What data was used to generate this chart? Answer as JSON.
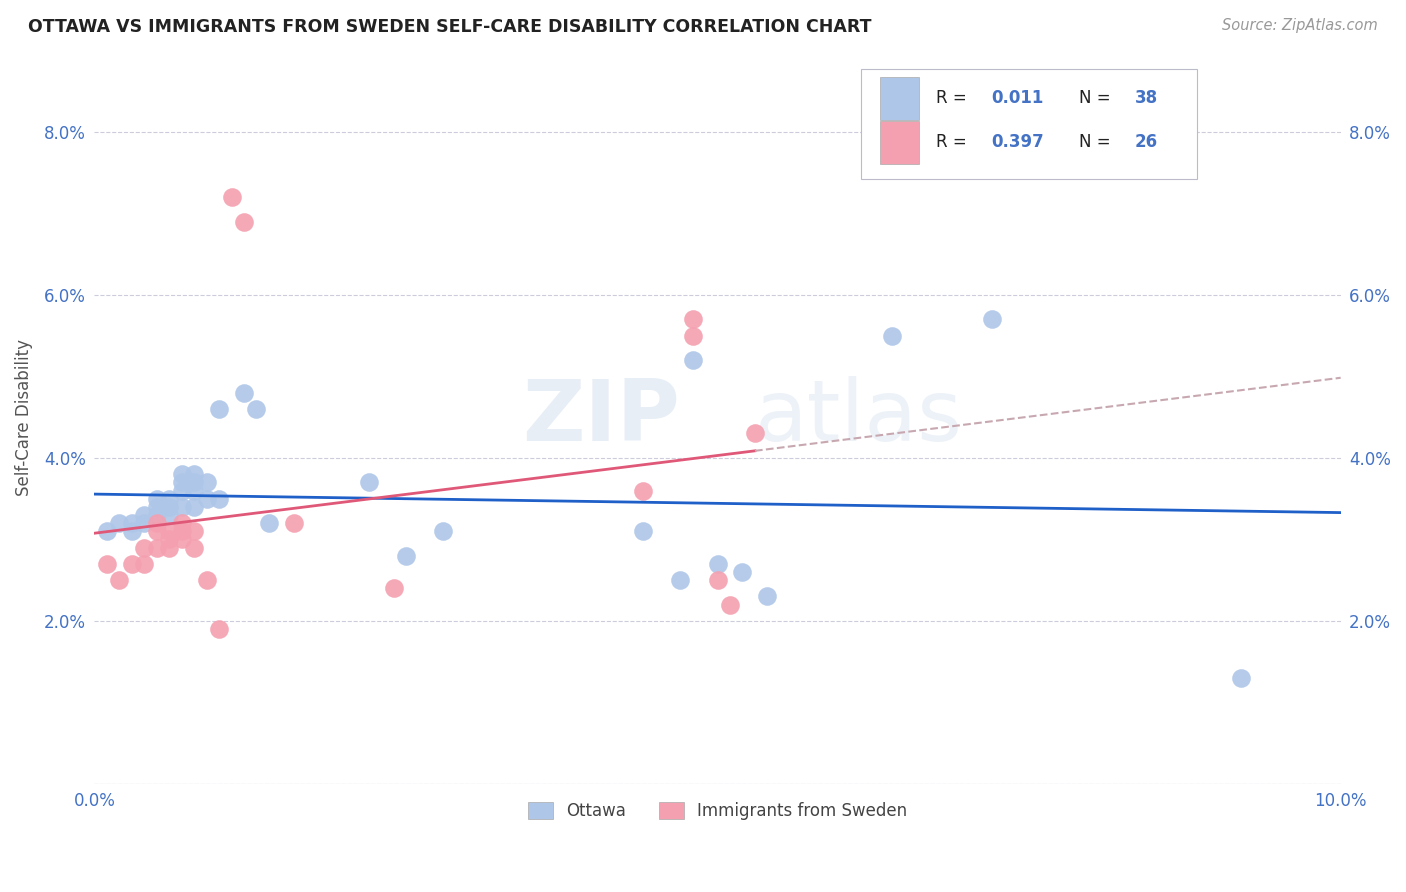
{
  "title": "OTTAWA VS IMMIGRANTS FROM SWEDEN SELF-CARE DISABILITY CORRELATION CHART",
  "source": "Source: ZipAtlas.com",
  "ylabel": "Self-Care Disability",
  "xlim": [
    0.0,
    0.1
  ],
  "ylim": [
    0.0,
    0.09
  ],
  "yticks": [
    0.0,
    0.02,
    0.04,
    0.06,
    0.08
  ],
  "ytick_labels": [
    "",
    "2.0%",
    "4.0%",
    "6.0%",
    "8.0%"
  ],
  "xticks": [
    0.0,
    0.02,
    0.04,
    0.06,
    0.08,
    0.1
  ],
  "xtick_labels": [
    "0.0%",
    "",
    "",
    "",
    "",
    "10.0%"
  ],
  "ottawa_color": "#aec6e8",
  "sweden_color": "#f4a0b0",
  "trendline1_color": "#1f5fc8",
  "trendline2_color": "#e05878",
  "trendline2_extend_color": "#c8a8b0",
  "watermark": "ZIPatlas",
  "legend_color": "#4472c4",
  "ottawa_points": [
    [
      0.001,
      0.031
    ],
    [
      0.002,
      0.032
    ],
    [
      0.003,
      0.032
    ],
    [
      0.003,
      0.031
    ],
    [
      0.004,
      0.033
    ],
    [
      0.004,
      0.032
    ],
    [
      0.005,
      0.035
    ],
    [
      0.005,
      0.034
    ],
    [
      0.005,
      0.033
    ],
    [
      0.006,
      0.035
    ],
    [
      0.006,
      0.034
    ],
    [
      0.006,
      0.033
    ],
    [
      0.007,
      0.038
    ],
    [
      0.007,
      0.037
    ],
    [
      0.007,
      0.036
    ],
    [
      0.007,
      0.034
    ],
    [
      0.008,
      0.038
    ],
    [
      0.008,
      0.037
    ],
    [
      0.008,
      0.036
    ],
    [
      0.008,
      0.034
    ],
    [
      0.009,
      0.037
    ],
    [
      0.009,
      0.035
    ],
    [
      0.01,
      0.046
    ],
    [
      0.01,
      0.035
    ],
    [
      0.012,
      0.048
    ],
    [
      0.013,
      0.046
    ],
    [
      0.014,
      0.032
    ],
    [
      0.022,
      0.037
    ],
    [
      0.025,
      0.028
    ],
    [
      0.028,
      0.031
    ],
    [
      0.044,
      0.031
    ],
    [
      0.047,
      0.025
    ],
    [
      0.048,
      0.052
    ],
    [
      0.05,
      0.027
    ],
    [
      0.052,
      0.026
    ],
    [
      0.054,
      0.023
    ],
    [
      0.064,
      0.055
    ],
    [
      0.072,
      0.057
    ],
    [
      0.092,
      0.013
    ]
  ],
  "sweden_points": [
    [
      0.001,
      0.027
    ],
    [
      0.002,
      0.025
    ],
    [
      0.003,
      0.027
    ],
    [
      0.004,
      0.027
    ],
    [
      0.004,
      0.029
    ],
    [
      0.005,
      0.029
    ],
    [
      0.005,
      0.032
    ],
    [
      0.005,
      0.031
    ],
    [
      0.006,
      0.031
    ],
    [
      0.006,
      0.03
    ],
    [
      0.006,
      0.029
    ],
    [
      0.007,
      0.032
    ],
    [
      0.007,
      0.031
    ],
    [
      0.007,
      0.03
    ],
    [
      0.008,
      0.031
    ],
    [
      0.008,
      0.029
    ],
    [
      0.009,
      0.025
    ],
    [
      0.01,
      0.019
    ],
    [
      0.011,
      0.072
    ],
    [
      0.012,
      0.069
    ],
    [
      0.016,
      0.032
    ],
    [
      0.024,
      0.024
    ],
    [
      0.044,
      0.036
    ],
    [
      0.048,
      0.057
    ],
    [
      0.048,
      0.055
    ],
    [
      0.05,
      0.025
    ],
    [
      0.051,
      0.022
    ],
    [
      0.053,
      0.043
    ]
  ],
  "ottawa_trendline_slope": 0.011,
  "sweden_trendline_slope": 0.397
}
